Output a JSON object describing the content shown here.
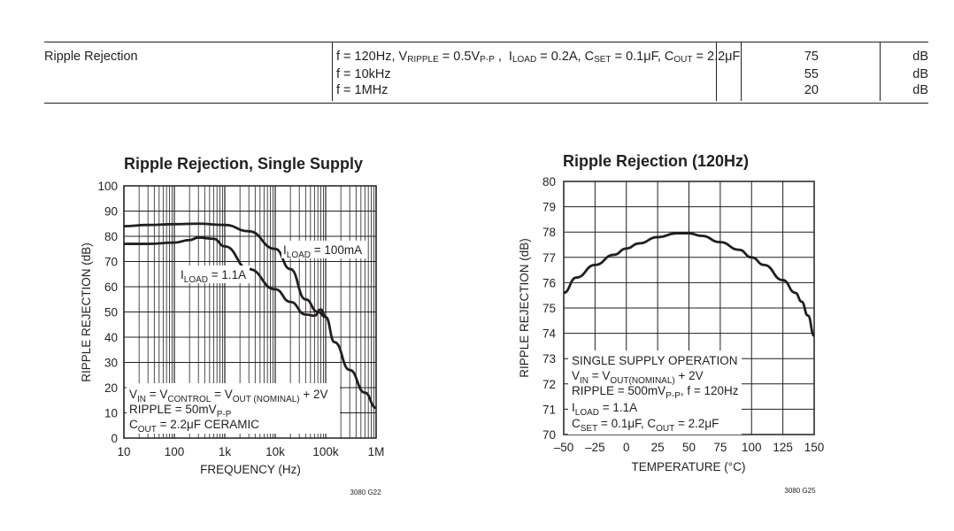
{
  "spec_table": {
    "parameter": "Ripple Rejection",
    "rows": [
      {
        "conditions": "f = 120Hz, V_RIPPLE = 0.5V_P-P , I_LOAD = 0.2A, C_SET = 0.1μF, C_OUT = 2.2μF",
        "value": "75",
        "unit": "dB"
      },
      {
        "conditions": "f = 10kHz",
        "value": "55",
        "unit": "dB"
      },
      {
        "conditions": "f = 1MHz",
        "value": "20",
        "unit": "dB"
      }
    ]
  },
  "chart_data": [
    {
      "type": "line",
      "title": "Ripple Rejection, Single Supply",
      "xlabel": "FREQUENCY (Hz)",
      "ylabel": "RIPPLE REJECTION (dB)",
      "x_scale": "log",
      "xlim": [
        10,
        1000000
      ],
      "ylim": [
        0,
        100
      ],
      "x_ticks": [
        "10",
        "100",
        "1k",
        "10k",
        "100k",
        "1M"
      ],
      "y_ticks": [
        "0",
        "10",
        "20",
        "30",
        "40",
        "50",
        "60",
        "70",
        "80",
        "90",
        "100"
      ],
      "grid": true,
      "annotations": [
        "I_LOAD = 100mA",
        "I_LOAD = 1.1A"
      ],
      "conditions": [
        "V_IN = V_CONTROL = V_OUT (NOMINAL) + 2V",
        "RIPPLE = 50mV_P-P",
        "C_OUT = 2.2μF CERAMIC"
      ],
      "series": [
        {
          "name": "I_LOAD = 100mA",
          "x": [
            10,
            30,
            100,
            300,
            1000,
            3000,
            10000,
            20000,
            40000,
            70000,
            100000,
            150000,
            300000,
            600000,
            1000000
          ],
          "values": [
            84,
            84.5,
            84.8,
            85,
            84.5,
            82,
            75,
            67,
            55,
            50,
            48,
            38,
            27,
            18,
            12
          ]
        },
        {
          "name": "I_LOAD = 1.1A",
          "x": [
            10,
            30,
            100,
            200,
            300,
            600,
            1000,
            3000,
            10000,
            20000,
            40000,
            60000,
            80000,
            100000
          ],
          "values": [
            77,
            77,
            77.5,
            78.5,
            79.5,
            79,
            76,
            67,
            59,
            54,
            49,
            48.5,
            51,
            48
          ]
        }
      ],
      "figure_code": "3080 G22"
    },
    {
      "type": "line",
      "title": "Ripple Rejection (120Hz)",
      "xlabel": "TEMPERATURE (°C)",
      "ylabel": "RIPPLE REJECTION (dB)",
      "xlim": [
        -50,
        150
      ],
      "ylim": [
        70,
        80
      ],
      "x_ticks": [
        "–50",
        "–25",
        "0",
        "25",
        "50",
        "75",
        "100",
        "125",
        "150"
      ],
      "y_ticks": [
        "70",
        "71",
        "72",
        "73",
        "74",
        "75",
        "76",
        "77",
        "78",
        "79",
        "80"
      ],
      "grid": true,
      "conditions": [
        "SINGLE SUPPLY OPERATION",
        "V_IN = V_OUT(NOMINAL) + 2V",
        "RIPPLE = 500mV_P-P, f = 120Hz",
        "I_LOAD = 1.1A",
        "C_SET = 0.1μF, C_OUT = 2.2μF"
      ],
      "series": [
        {
          "x": [
            -50,
            -40,
            -25,
            -10,
            0,
            10,
            25,
            40,
            50,
            60,
            75,
            90,
            100,
            110,
            125,
            135,
            140,
            145,
            150
          ],
          "values": [
            75.6,
            76.2,
            76.7,
            77.1,
            77.35,
            77.55,
            77.8,
            77.95,
            77.95,
            77.85,
            77.6,
            77.3,
            77.0,
            76.7,
            76.1,
            75.6,
            75.25,
            74.7,
            73.9
          ]
        }
      ],
      "figure_code": "3080 G25"
    }
  ]
}
